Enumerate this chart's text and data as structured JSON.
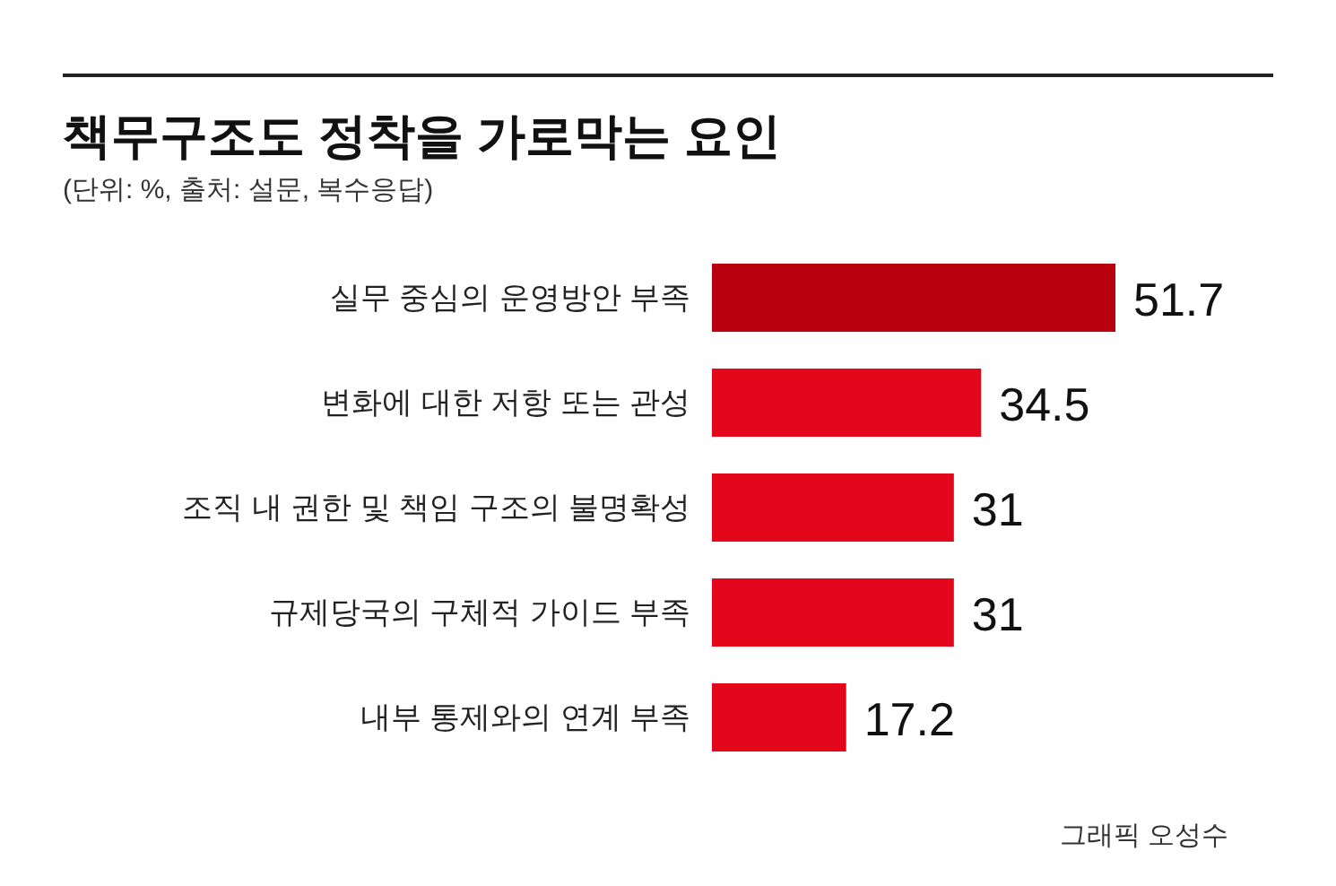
{
  "chart_data": {
    "type": "bar",
    "orientation": "horizontal",
    "title": "책무구조도 정착을 가로막는 요인",
    "subtitle": "(단위: %, 출처: 설문, 복수응답)",
    "categories": [
      "실무 중심의 운영방안 부족",
      "변화에 대한 저항 또는 관성",
      "조직 내 권한 및 책임 구조의 불명확성",
      "규제당국의 구체적 가이드 부족",
      "내부 통제와의 연계 부족"
    ],
    "values": [
      51.7,
      34.5,
      31,
      31,
      17.2
    ],
    "colors": [
      "#b8000f",
      "#e3071b",
      "#e3071b",
      "#e3071b",
      "#e3071b"
    ],
    "data_labels": true,
    "annotations": [
      "그래픽 오성수"
    ]
  }
}
